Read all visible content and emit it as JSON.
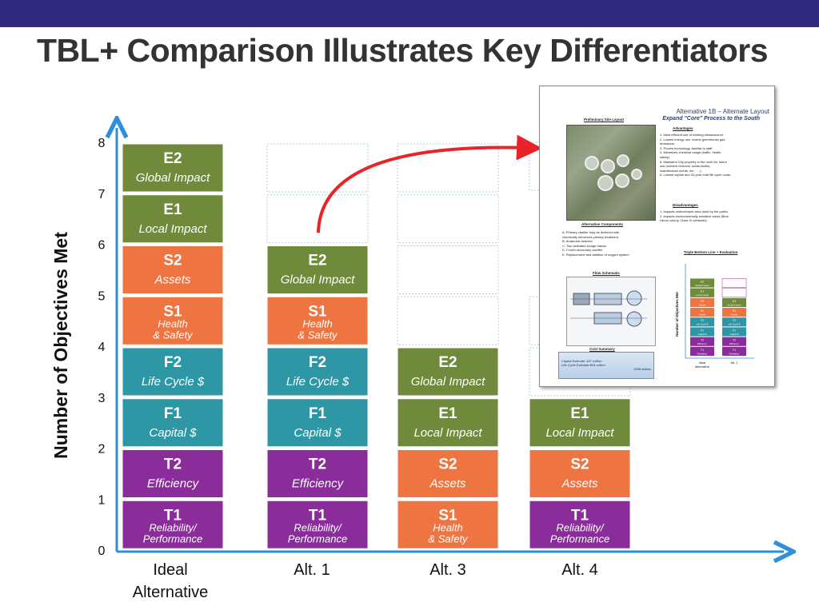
{
  "title": "TBL+ Comparison Illustrates Key Differentiators",
  "colors": {
    "header_bar": "#2f2a7e",
    "green": "#6f8a3a",
    "orange": "#ee7441",
    "teal": "#2e97a6",
    "purple": "#8a2d9a",
    "axis": "#2f8fd8",
    "arrow": "#e8232a"
  },
  "chart_data": {
    "type": "stacked-blocks",
    "ylabel": "Number of Objectives Met",
    "ylim": [
      0,
      8
    ],
    "yticks": [
      "0",
      "1",
      "2",
      "3",
      "4",
      "5",
      "6",
      "7",
      "8"
    ],
    "columns": [
      {
        "label": "Ideal\nAlternative",
        "blocks": [
          {
            "code": "T1",
            "desc": "Reliability/\nPerformance",
            "color": "purple"
          },
          {
            "code": "T2",
            "desc": "Efficiency",
            "color": "purple"
          },
          {
            "code": "F1",
            "desc": "Capital $",
            "color": "teal"
          },
          {
            "code": "F2",
            "desc": "Life Cycle $",
            "color": "teal"
          },
          {
            "code": "S1",
            "desc": "Health\n& Safety",
            "color": "orange"
          },
          {
            "code": "S2",
            "desc": "Assets",
            "color": "orange"
          },
          {
            "code": "E1",
            "desc": "Local Impact",
            "color": "green"
          },
          {
            "code": "E2",
            "desc": "Global Impact",
            "color": "green"
          }
        ]
      },
      {
        "label": "Alt. 1",
        "blocks": [
          {
            "code": "T1",
            "desc": "Reliability/\nPerformance",
            "color": "purple"
          },
          {
            "code": "T2",
            "desc": "Efficiency",
            "color": "purple"
          },
          {
            "code": "F1",
            "desc": "Capital $",
            "color": "teal"
          },
          {
            "code": "F2",
            "desc": "Life Cycle $",
            "color": "teal"
          },
          {
            "code": "S1",
            "desc": "Health\n& Safety",
            "color": "orange"
          },
          {
            "code": "E2",
            "desc": "Global Impact",
            "color": "green"
          }
        ]
      },
      {
        "label": "Alt. 3",
        "blocks": [
          {
            "code": "S1",
            "desc": "Health\n& Safety",
            "color": "orange"
          },
          {
            "code": "S2",
            "desc": "Assets",
            "color": "orange"
          },
          {
            "code": "E1",
            "desc": "Local Impact",
            "color": "green"
          },
          {
            "code": "E2",
            "desc": "Global Impact",
            "color": "green"
          }
        ]
      },
      {
        "label": "Alt. 4",
        "blocks": [
          {
            "code": "T1",
            "desc": "Reliability/\nPerformance",
            "color": "purple"
          },
          {
            "code": "S2",
            "desc": "Assets",
            "color": "orange"
          },
          {
            "code": "E1",
            "desc": "Local Impact",
            "color": "green"
          }
        ]
      }
    ]
  },
  "thumbnail": {
    "title": "Alternative 1B – Alternate Layout",
    "subtitle": "Expand \"Core\" Process to the South",
    "site_label": "Preliminary Site Layout",
    "advantages_label": "Advantages",
    "advantages": [
      "1. Most efficient use of existing infrastructure.",
      "2. Lowest energy use, lowest greenhouse gas",
      "   emissions.",
      "3. Proven technology, familiar to staff",
      "4. Minimizes chemical usage (traffic, health,",
      "   safety).",
      "5. Maintains City property to the north for future",
      "   use (nutrient removal, solids facility,",
      "   maintenance needs, etc. . . .).",
      "6. Lowest capital and 20-year total life cycle costs."
    ],
    "disadvantages_label": "Disadvantages",
    "disadvantages": [
      "1. Impacts undeveloped area used by the public.",
      "2. Impacts environmentally sensitive areas (Blue",
      "   Heron colony, Class IV wetlands)."
    ],
    "components_label": "Alternative Components",
    "components": [
      "A. Primary clarifier may be deferred with",
      "   chemically enhanced primary treatment",
      "B. Anaerobic selector",
      "C. Two activated sludge basins",
      "D. Fourth secondary clarifier",
      "E. Replacement and addition of oxygen system"
    ],
    "schematic_label": "Flow Schematic",
    "tbl_label": "Triple Bottom Line + Evaluation",
    "mini_ylabel": "Number of Objectives Met",
    "mini_x1": "Ideal\nAlternative",
    "mini_x2": "Alt. 1",
    "cost_label": "Cost Summary",
    "cost_lines": [
      "Capital Estimate: $47 million",
      "Life-Cycle Estimate:$54 million"
    ],
    "cost_note": "2008 dollars"
  }
}
